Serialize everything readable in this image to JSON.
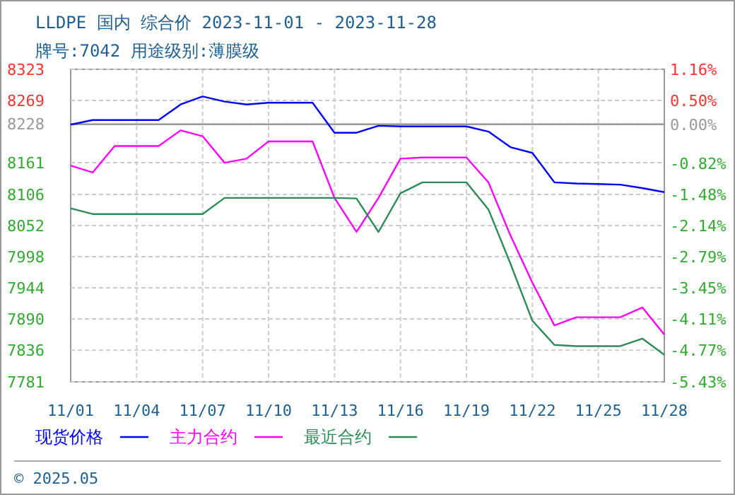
{
  "chart_data": {
    "type": "line",
    "title": "LLDPE 国内 综合价 2023-11-01 - 2023-11-28",
    "subtitle": "牌号:7042 用途级别:薄膜级",
    "categories": [
      "11/01",
      null,
      null,
      "11/04",
      null,
      null,
      "11/07",
      null,
      null,
      "11/10",
      null,
      null,
      "11/13",
      null,
      null,
      "11/16",
      null,
      null,
      "11/19",
      null,
      null,
      "11/22",
      null,
      null,
      "11/25",
      null,
      null,
      "11/28"
    ],
    "series": [
      {
        "name": "现货价格",
        "color": "#0000ff",
        "values": [
          8227,
          8235,
          8235,
          8235,
          8235,
          8262,
          8276,
          8267,
          8262,
          8265,
          8265,
          8265,
          8213,
          8213,
          8225,
          8224,
          8224,
          8224,
          8224,
          8215,
          8188,
          8178,
          8127,
          8125,
          8124,
          8123,
          8117,
          8110
        ]
      },
      {
        "name": "主力合约",
        "color": "#ff00ff",
        "values": [
          8156,
          8144,
          8190,
          8190,
          8190,
          8217,
          8207,
          8161,
          8168,
          8198,
          8198,
          8198,
          8100,
          8041,
          8100,
          8168,
          8170,
          8170,
          8170,
          8127,
          8035,
          7953,
          7879,
          7893,
          7893,
          7893,
          7910,
          7863
        ]
      },
      {
        "name": "最近合约",
        "color": "#2e8b57",
        "values": [
          8082,
          8072,
          8072,
          8072,
          8072,
          8072,
          8072,
          8100,
          8100,
          8100,
          8100,
          8100,
          8100,
          8099,
          8041,
          8108,
          8127,
          8127,
          8127,
          8080,
          7986,
          7887,
          7845,
          7843,
          7843,
          7843,
          7856,
          7828
        ]
      }
    ],
    "ylim": [
      7781,
      8323
    ],
    "yticks": [
      8323,
      8269,
      8228,
      8161,
      8106,
      8052,
      7998,
      7944,
      7890,
      7836,
      7781
    ],
    "y2lim": [
      -5.43,
      1.16
    ],
    "y2ticks": [
      {
        "value": 1.16,
        "label": "1.16%"
      },
      {
        "value": 0.5,
        "label": "0.50%"
      },
      {
        "value": 0,
        "label": "0.00%"
      },
      {
        "value": -0.82,
        "label": "-0.82%"
      },
      {
        "value": -1.48,
        "label": "-1.48%"
      },
      {
        "value": -2.14,
        "label": "-2.14%"
      },
      {
        "value": -2.79,
        "label": "-2.79%"
      },
      {
        "value": -3.45,
        "label": "-3.45%"
      },
      {
        "value": -4.11,
        "label": "-4.11%"
      },
      {
        "value": -4.77,
        "label": "-4.77%"
      },
      {
        "value": -5.43,
        "label": "-5.43%"
      }
    ],
    "ref_lines": [
      {
        "axis": "y2",
        "value": 0,
        "color": "#999999"
      }
    ],
    "grid": true,
    "legend": "bottom",
    "line_style": "solid",
    "annotations": [
      "© 2025.05"
    ]
  }
}
